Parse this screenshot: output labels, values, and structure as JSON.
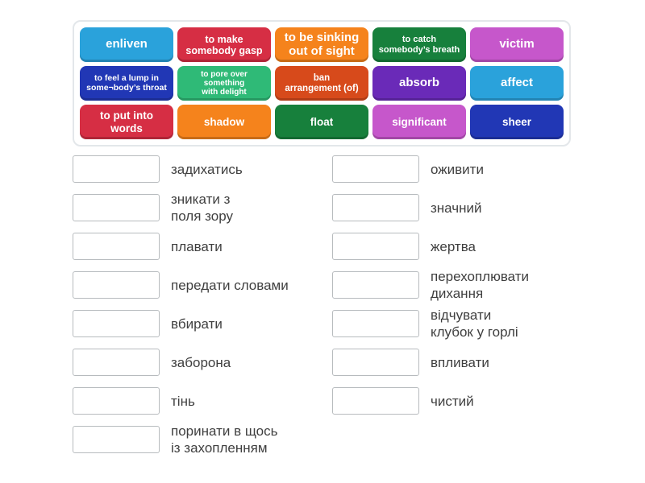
{
  "game": {
    "type": "match-up",
    "tiles": [
      {
        "label": "enliven",
        "color": "#2aa2db"
      },
      {
        "label": "to make\nsomebody gasp",
        "color": "#d62e44"
      },
      {
        "label": "to be sinking\nout of sight",
        "color": "#f5831c"
      },
      {
        "label": "to catch\nsomebody’s breath",
        "color": "#17803c"
      },
      {
        "label": "victim",
        "color": "#c657cb"
      },
      {
        "label": "to feel a lump in\nsome¬body’s throat",
        "color": "#2137b5"
      },
      {
        "label": "to pore over\nsomething\nwith delight",
        "color": "#2fba77"
      },
      {
        "label": "ban\narrangement (of)",
        "color": "#d74a1b"
      },
      {
        "label": "absorb",
        "color": "#6a2ab8"
      },
      {
        "label": "affect",
        "color": "#2aa2db"
      },
      {
        "label": "to put into\nwords",
        "color": "#d62e44"
      },
      {
        "label": "shadow",
        "color": "#f5831c"
      },
      {
        "label": "float",
        "color": "#17803c"
      },
      {
        "label": "significant",
        "color": "#c657cb"
      },
      {
        "label": "sheer",
        "color": "#2137b5"
      }
    ],
    "answers_left": [
      "задихатись",
      "зникати з\nполя зору",
      "плавати",
      "передати словами",
      "вбирати",
      "заборона",
      "тінь",
      "поринати в щось\nіз захопленням"
    ],
    "answers_right": [
      "оживити",
      "значний",
      "жертва",
      "перехоплювати\nдихання",
      "відчувати\nклубок у горлі",
      "впливати",
      "чистий"
    ]
  }
}
